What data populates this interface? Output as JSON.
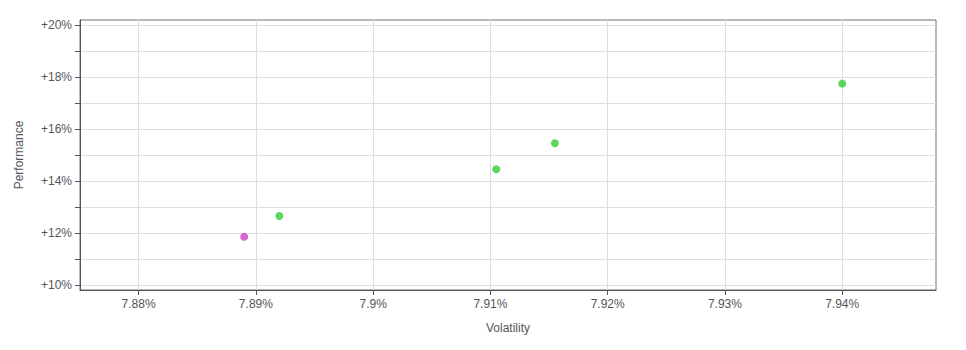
{
  "chart_data": {
    "type": "scatter",
    "xlabel": "Volatility",
    "ylabel": "Performance",
    "x": [
      0.07889,
      0.07892,
      0.079105,
      0.079155,
      0.0794
    ],
    "values": [
      0.1185,
      0.1265,
      0.1445,
      0.1545,
      0.1775
    ],
    "colors": [
      "#cc44cc",
      "#33cc33",
      "#33cc33",
      "#33cc33",
      "#33cc33"
    ],
    "xlim": [
      0.07875,
      0.07948
    ],
    "ylim": [
      0.098,
      0.202
    ],
    "xticks": [
      {
        "value": 0.0788,
        "label": "7.88%"
      },
      {
        "value": 0.0789,
        "label": "7.89%"
      },
      {
        "value": 0.079,
        "label": "7.9%"
      },
      {
        "value": 0.0791,
        "label": "7.91%"
      },
      {
        "value": 0.0792,
        "label": "7.92%"
      },
      {
        "value": 0.0793,
        "label": "7.93%"
      },
      {
        "value": 0.0794,
        "label": "7.94%"
      }
    ],
    "yticks": [
      {
        "value": 0.1,
        "label": "+10%"
      },
      {
        "value": 0.11,
        "label": null
      },
      {
        "value": 0.12,
        "label": "+12%"
      },
      {
        "value": 0.13,
        "label": null
      },
      {
        "value": 0.14,
        "label": "+14%"
      },
      {
        "value": 0.15,
        "label": null
      },
      {
        "value": 0.16,
        "label": "+16%"
      },
      {
        "value": 0.17,
        "label": null
      },
      {
        "value": 0.18,
        "label": "+18%"
      },
      {
        "value": 0.19,
        "label": null
      },
      {
        "value": 0.2,
        "label": "+20%"
      }
    ],
    "grid": true
  }
}
